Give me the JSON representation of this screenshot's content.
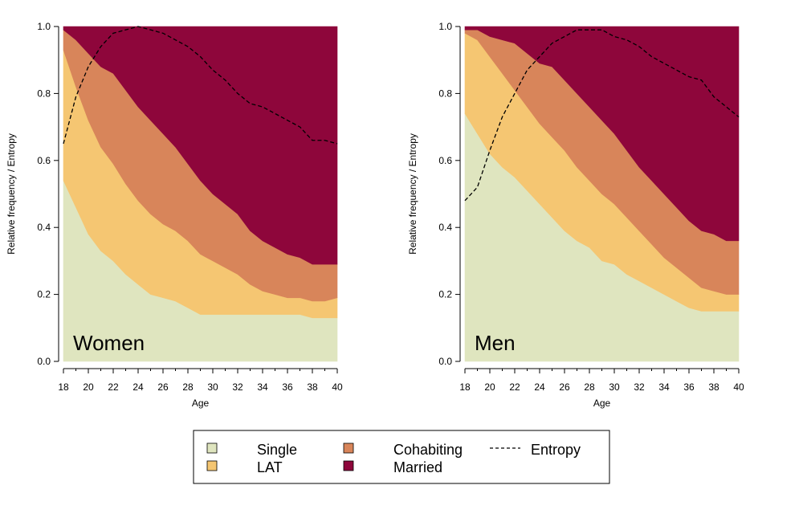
{
  "chart_data": [
    {
      "type": "area",
      "panel_label": "Women",
      "xlabel": "Age",
      "ylabel": "Relative frequency / Entropy",
      "xlim": [
        18,
        40
      ],
      "ylim": [
        0,
        1
      ],
      "x_ticks": [
        18,
        20,
        22,
        24,
        26,
        28,
        30,
        32,
        34,
        36,
        38,
        40
      ],
      "y_ticks": [
        "0.0",
        "0.2",
        "0.4",
        "0.6",
        "0.8",
        "1.0"
      ],
      "x": [
        18,
        19,
        20,
        21,
        22,
        23,
        24,
        25,
        26,
        27,
        28,
        29,
        30,
        31,
        32,
        33,
        34,
        35,
        36,
        37,
        38,
        39,
        40
      ],
      "series": [
        {
          "name": "Single",
          "color": "#dfe5bf",
          "values": [
            0.54,
            0.46,
            0.38,
            0.33,
            0.3,
            0.26,
            0.23,
            0.2,
            0.19,
            0.18,
            0.16,
            0.14,
            0.14,
            0.14,
            0.14,
            0.14,
            0.14,
            0.14,
            0.14,
            0.14,
            0.13,
            0.13,
            0.13
          ]
        },
        {
          "name": "LAT",
          "color": "#f5c672",
          "values": [
            0.39,
            0.36,
            0.34,
            0.31,
            0.29,
            0.27,
            0.25,
            0.24,
            0.22,
            0.21,
            0.2,
            0.18,
            0.16,
            0.14,
            0.12,
            0.09,
            0.07,
            0.06,
            0.05,
            0.05,
            0.05,
            0.05,
            0.06
          ]
        },
        {
          "name": "Cohabiting",
          "color": "#d8855a",
          "values": [
            0.06,
            0.14,
            0.2,
            0.24,
            0.27,
            0.28,
            0.28,
            0.28,
            0.27,
            0.25,
            0.23,
            0.22,
            0.2,
            0.19,
            0.18,
            0.16,
            0.15,
            0.14,
            0.13,
            0.12,
            0.11,
            0.11,
            0.1
          ]
        },
        {
          "name": "Married",
          "color": "#8e063b",
          "values": [
            0.01,
            0.04,
            0.08,
            0.12,
            0.14,
            0.19,
            0.24,
            0.28,
            0.32,
            0.36,
            0.41,
            0.46,
            0.5,
            0.53,
            0.56,
            0.61,
            0.64,
            0.66,
            0.68,
            0.69,
            0.71,
            0.71,
            0.71
          ]
        }
      ],
      "entropy": {
        "name": "Entropy",
        "values": [
          0.65,
          0.79,
          0.88,
          0.94,
          0.98,
          0.99,
          1.0,
          0.99,
          0.98,
          0.96,
          0.94,
          0.91,
          0.87,
          0.84,
          0.8,
          0.77,
          0.76,
          0.74,
          0.72,
          0.7,
          0.66,
          0.66,
          0.65
        ]
      }
    },
    {
      "type": "area",
      "panel_label": "Men",
      "xlabel": "Age",
      "ylabel": "Relative frequency / Entropy",
      "xlim": [
        18,
        40
      ],
      "ylim": [
        0,
        1
      ],
      "x_ticks": [
        18,
        20,
        22,
        24,
        26,
        28,
        30,
        32,
        34,
        36,
        38,
        40
      ],
      "y_ticks": [
        "0.0",
        "0.2",
        "0.4",
        "0.6",
        "0.8",
        "1.0"
      ],
      "x": [
        18,
        19,
        20,
        21,
        22,
        23,
        24,
        25,
        26,
        27,
        28,
        29,
        30,
        31,
        32,
        33,
        34,
        35,
        36,
        37,
        38,
        39,
        40
      ],
      "series": [
        {
          "name": "Single",
          "color": "#dfe5bf",
          "values": [
            0.74,
            0.68,
            0.62,
            0.58,
            0.55,
            0.51,
            0.47,
            0.43,
            0.39,
            0.36,
            0.34,
            0.3,
            0.29,
            0.26,
            0.24,
            0.22,
            0.2,
            0.18,
            0.16,
            0.15,
            0.15,
            0.15,
            0.15
          ]
        },
        {
          "name": "LAT",
          "color": "#f5c672",
          "values": [
            0.24,
            0.28,
            0.29,
            0.28,
            0.26,
            0.25,
            0.24,
            0.24,
            0.24,
            0.22,
            0.2,
            0.2,
            0.18,
            0.17,
            0.15,
            0.13,
            0.11,
            0.1,
            0.09,
            0.07,
            0.06,
            0.05,
            0.05
          ]
        },
        {
          "name": "Cohabiting",
          "color": "#d8855a",
          "values": [
            0.01,
            0.03,
            0.06,
            0.1,
            0.14,
            0.16,
            0.18,
            0.21,
            0.21,
            0.22,
            0.22,
            0.22,
            0.21,
            0.2,
            0.19,
            0.19,
            0.19,
            0.18,
            0.17,
            0.17,
            0.17,
            0.16,
            0.16
          ]
        },
        {
          "name": "Married",
          "color": "#8e063b",
          "values": [
            0.01,
            0.01,
            0.03,
            0.04,
            0.05,
            0.08,
            0.11,
            0.12,
            0.16,
            0.2,
            0.24,
            0.28,
            0.32,
            0.37,
            0.42,
            0.46,
            0.5,
            0.54,
            0.58,
            0.61,
            0.62,
            0.64,
            0.64
          ]
        }
      ],
      "entropy": {
        "name": "Entropy",
        "values": [
          0.48,
          0.52,
          0.63,
          0.73,
          0.8,
          0.87,
          0.91,
          0.95,
          0.97,
          0.99,
          0.99,
          0.99,
          0.97,
          0.96,
          0.94,
          0.91,
          0.89,
          0.87,
          0.85,
          0.84,
          0.79,
          0.76,
          0.73
        ]
      }
    }
  ],
  "legend": {
    "items": [
      {
        "label": "Single",
        "color": "#dfe5bf",
        "kind": "box"
      },
      {
        "label": "LAT",
        "color": "#f5c672",
        "kind": "box"
      },
      {
        "label": "Cohabiting",
        "color": "#d8855a",
        "kind": "box"
      },
      {
        "label": "Married",
        "color": "#8e063b",
        "kind": "box"
      },
      {
        "label": "Entropy",
        "color": "#000000",
        "kind": "dashed-line"
      }
    ]
  }
}
